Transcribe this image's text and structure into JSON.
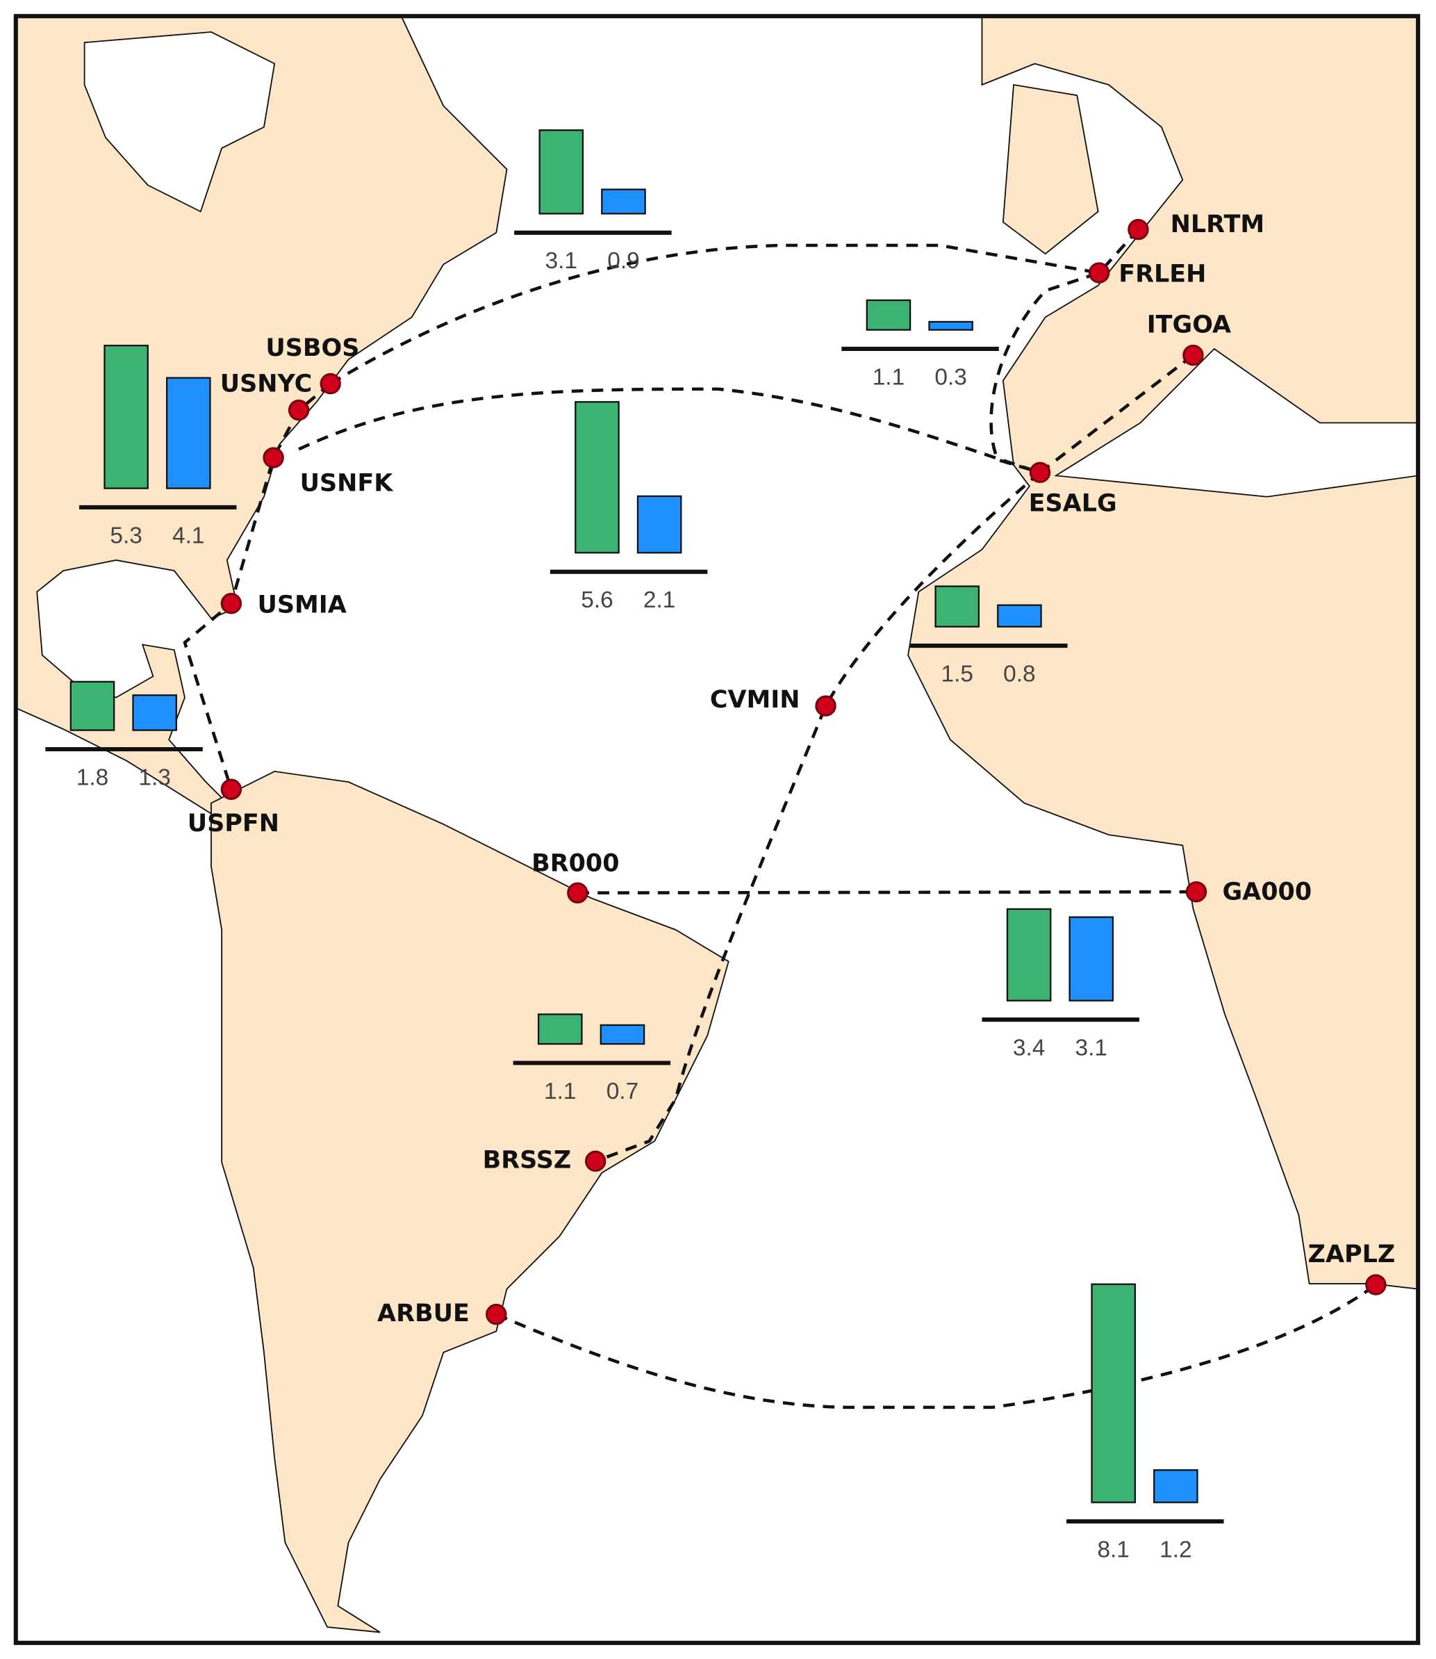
{
  "ports": [
    {
      "label": "USBOS"
    },
    {
      "label": "USNYC"
    },
    {
      "label": "USNFK"
    },
    {
      "label": "USMIA"
    },
    {
      "label": "USPFN"
    },
    {
      "label": "NLRTM"
    },
    {
      "label": "FRLEH"
    },
    {
      "label": "ITGOA"
    },
    {
      "label": "ESALG"
    },
    {
      "label": "CVMIN"
    },
    {
      "label": "BR000"
    },
    {
      "label": "GA000"
    },
    {
      "label": "BRSSZ"
    },
    {
      "label": "ARBUE"
    },
    {
      "label": "ZAPLZ"
    }
  ],
  "charts": [
    {
      "values": [
        3.1,
        0.9
      ]
    },
    {
      "values": [
        1.1,
        0.3
      ]
    },
    {
      "values": [
        5.3,
        4.1
      ]
    },
    {
      "values": [
        5.6,
        2.1
      ]
    },
    {
      "values": [
        1.5,
        0.8
      ]
    },
    {
      "values": [
        1.8,
        1.3
      ]
    },
    {
      "values": [
        3.4,
        3.1
      ]
    },
    {
      "values": [
        1.1,
        0.7
      ]
    },
    {
      "values": [
        8.1,
        1.2
      ]
    }
  ],
  "colors": [
    "#3cb371",
    "#1e90ff"
  ]
}
